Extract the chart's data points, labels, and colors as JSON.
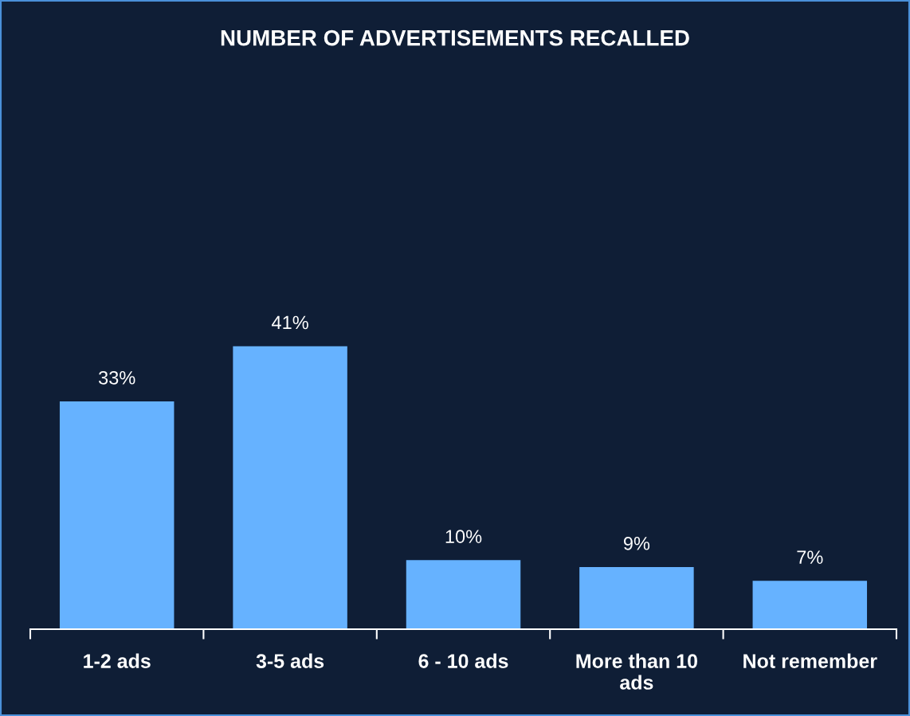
{
  "chart_data": {
    "type": "bar",
    "title": "NUMBER OF ADVERTISEMENTS RECALLED",
    "categories": [
      "1-2 ads",
      "3-5 ads",
      "6 - 10 ads",
      "More than 10\nads",
      "Not remember"
    ],
    "values": [
      33,
      41,
      10,
      9,
      7
    ],
    "value_labels": [
      "33%",
      "41%",
      "10%",
      "9%",
      "7%"
    ],
    "color": "#66b2ff",
    "grid": false,
    "legend": false
  }
}
